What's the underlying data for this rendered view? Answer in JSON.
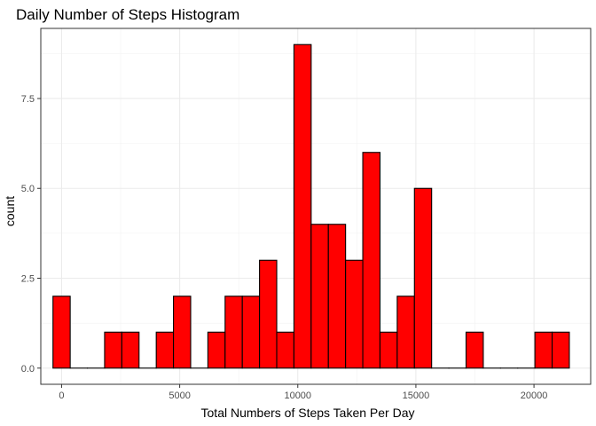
{
  "chart_data": {
    "type": "bar",
    "title": "Daily Number of Steps Histogram",
    "xlabel": "Total Numbers of Steps Taken Per Day",
    "ylabel": "count",
    "xlim": [
      -880,
      22400
    ],
    "ylim": [
      -0.45,
      9.45
    ],
    "x_ticks": [
      0,
      5000,
      10000,
      15000,
      20000
    ],
    "x_tick_labels": [
      "0",
      "5000",
      "10000",
      "15000",
      "20000"
    ],
    "y_ticks": [
      0,
      2.5,
      5,
      7.5
    ],
    "y_tick_labels": [
      "0.0",
      "2.5",
      "5.0",
      "7.5"
    ],
    "bin_width": 728.69,
    "bin_centers": [
      0,
      728.69,
      1457.38,
      2186.07,
      2914.76,
      3643.45,
      4372.14,
      5100.83,
      5829.52,
      6558.21,
      7286.9,
      8015.59,
      8744.28,
      9472.97,
      10201.66,
      10930.34,
      11659.03,
      12387.72,
      13116.41,
      13845.1,
      14573.79,
      15302.48,
      16031.17,
      16759.86,
      17488.55,
      18217.24,
      18945.93,
      19674.62,
      20403.31,
      21132.0
    ],
    "values": [
      2,
      0,
      0,
      1,
      1,
      0,
      1,
      2,
      0,
      1,
      2,
      2,
      3,
      1,
      9,
      4,
      4,
      3,
      6,
      1,
      2,
      5,
      0,
      0,
      1,
      0,
      0,
      0,
      1,
      1
    ],
    "grid": true,
    "colors": {
      "fill": "#FF0000",
      "stroke": "#000000",
      "grid_major": "#EBEBEB",
      "grid_minor": "#F2F2F2",
      "panel_border": "#333333",
      "tick_text": "#4D4D4D"
    }
  }
}
